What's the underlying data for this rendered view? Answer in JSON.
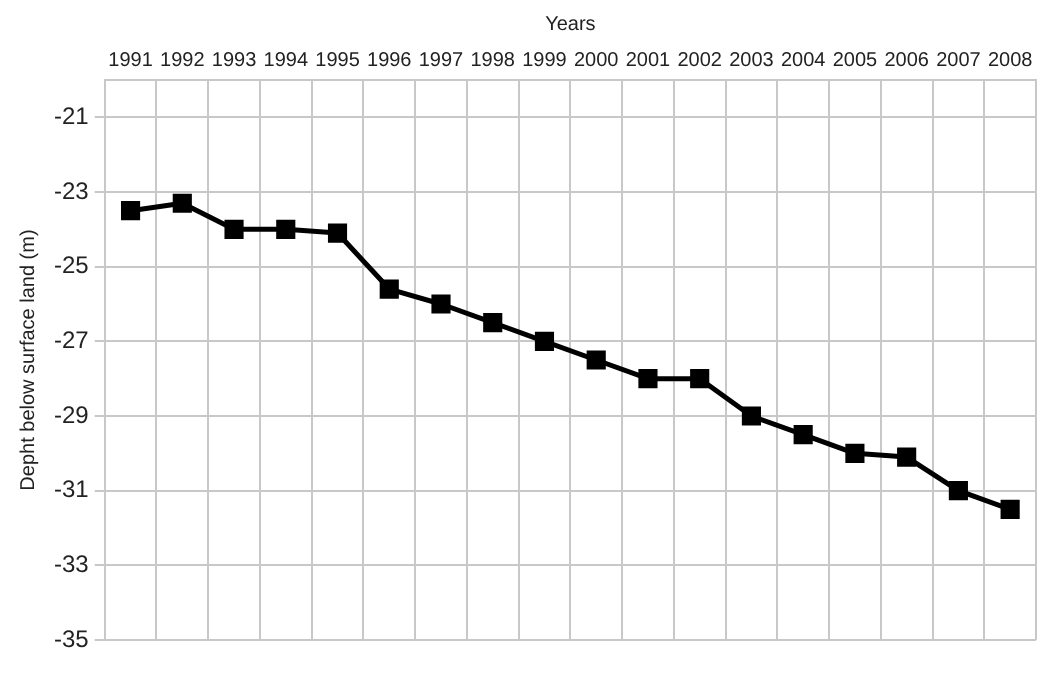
{
  "chart_data": {
    "type": "line",
    "xlabel": "Years",
    "ylabel": "Depht below surface land (m)",
    "categories": [
      "1991",
      "1992",
      "1993",
      "1994",
      "1995",
      "1996",
      "1997",
      "1998",
      "1999",
      "2000",
      "2001",
      "2002",
      "2003",
      "2004",
      "2005",
      "2006",
      "2007",
      "2008"
    ],
    "series": [
      {
        "color": "#000000",
        "values": [
          -23.5,
          -23.3,
          -24,
          -24,
          -24.1,
          -25.6,
          -26,
          -26.5,
          -27,
          -27.5,
          -28,
          -28,
          -29,
          -29.5,
          -30,
          -30.1,
          -31,
          -31.5
        ]
      }
    ],
    "ylim": [
      -35,
      -20
    ],
    "yticks": [
      -21,
      -23,
      -25,
      -27,
      -29,
      -31,
      -33,
      -35
    ],
    "grid": true,
    "legend": false,
    "marker": "square",
    "line_style": "solid"
  }
}
